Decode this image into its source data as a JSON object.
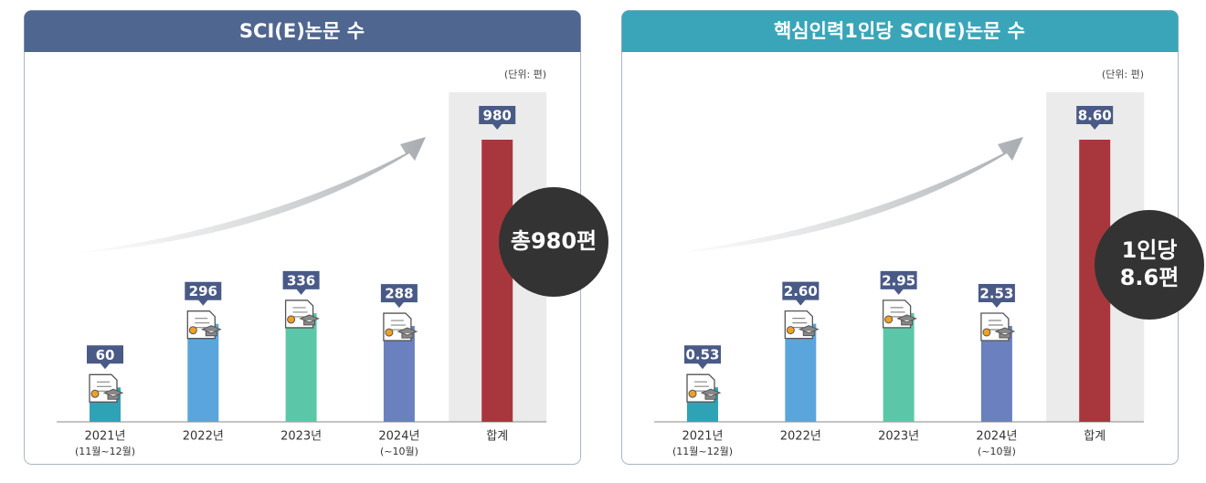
{
  "chart_data": [
    {
      "type": "bar",
      "title": "SCI(E)논문 수",
      "unit": "(단위: 편)",
      "categories": [
        "2021년",
        "2022년",
        "2023년",
        "2024년",
        "합계"
      ],
      "subcategories": [
        "(11월~12월)",
        null,
        null,
        "(~10월)",
        null
      ],
      "values": [
        60,
        296,
        336,
        288,
        980
      ],
      "colors": [
        "#2fa3b6",
        "#5aa6dc",
        "#5cc7a8",
        "#6a80bf",
        "#a8373d"
      ],
      "header_color": "#4f6690",
      "callout": [
        "총980편"
      ]
    },
    {
      "type": "bar",
      "title": "핵심인력1인당 SCI(E)논문 수",
      "unit": "(단위: 편)",
      "categories": [
        "2021년",
        "2022년",
        "2023년",
        "2024년",
        "합계"
      ],
      "subcategories": [
        "(11월~12월)",
        null,
        null,
        "(~10월)",
        null
      ],
      "values": [
        0.53,
        2.6,
        2.95,
        2.53,
        8.6
      ],
      "value_labels": [
        "0.53",
        "2.60",
        "2.95",
        "2.53",
        "8.60"
      ],
      "colors": [
        "#2fa3b6",
        "#5aa6dc",
        "#5cc7a8",
        "#6a80bf",
        "#a8373d"
      ],
      "header_color": "#3aa5b8",
      "callout": [
        "1인당",
        "8.6편"
      ]
    }
  ]
}
